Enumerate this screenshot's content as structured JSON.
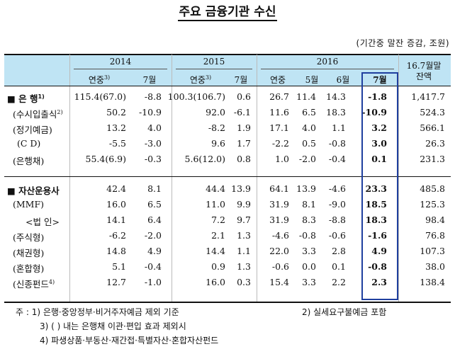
{
  "title": "주요 금융기관 수신",
  "unit": "(기간중 말잔 증감, 조원)",
  "header": {
    "years": [
      "2014",
      "2015",
      "2016"
    ],
    "sub_2014": [
      "연중",
      "7월"
    ],
    "sub_2015": [
      "연중",
      "7월"
    ],
    "sub_2016": [
      "연중",
      "5월",
      "6월",
      "7월"
    ],
    "sup3": "3)",
    "last_line1": "16.7월말",
    "last_line2": "잔액"
  },
  "rows": [
    {
      "label": "■ 은   행",
      "sup": "1)",
      "bold": true,
      "v": [
        "115.4(67.0)",
        "-8.8",
        "100.3(106.7)",
        "0.6",
        "26.7",
        "11.4",
        "14.3",
        "-1.8",
        "1,417.7"
      ]
    },
    {
      "label": "(수시입출식",
      "sup": "2)",
      "bold": false,
      "v": [
        "50.2",
        "-10.9",
        "92.0",
        "-6.1",
        "11.6",
        "6.5",
        "18.3",
        "-10.9",
        "524.3"
      ]
    },
    {
      "label": "(정기예금)",
      "sup": "",
      "bold": false,
      "v": [
        "13.2",
        "4.0",
        "-8.2",
        "1.9",
        "17.1",
        "4.0",
        "1.1",
        "3.2",
        "566.1"
      ]
    },
    {
      "label": "(C  D)",
      "sup": "",
      "bold": false,
      "v": [
        "-5.5",
        "-3.0",
        "9.6",
        "1.7",
        "-2.2",
        "0.5",
        "-0.8",
        "3.0",
        "26.3"
      ]
    },
    {
      "label": "(은행채)",
      "sup": "",
      "bold": false,
      "v": [
        "55.4(6.9)",
        "-0.3",
        "5.6(12.0)",
        "0.8",
        "1.0",
        "-2.0",
        "-0.4",
        "0.1",
        "231.3"
      ]
    },
    {
      "label": "■ 자산운용사",
      "sup": "",
      "bold": true,
      "v": [
        "42.4",
        "8.1",
        "44.4",
        "13.9",
        "64.1",
        "13.9",
        "-4.6",
        "23.3",
        "485.8"
      ]
    },
    {
      "label": "(MMF)",
      "sup": "",
      "bold": false,
      "v": [
        "16.0",
        "6.5",
        "11.0",
        "9.9",
        "31.9",
        "8.1",
        "-9.0",
        "18.5",
        "125.3"
      ]
    },
    {
      "label": "<법 인>",
      "sup": "",
      "bold": false,
      "v": [
        "14.1",
        "6.4",
        "7.2",
        "9.7",
        "31.9",
        "8.3",
        "-8.8",
        "18.3",
        "98.4"
      ]
    },
    {
      "label": "(주식형)",
      "sup": "",
      "bold": false,
      "v": [
        "-6.2",
        "-2.0",
        "2.1",
        "1.3",
        "-4.6",
        "-0.8",
        "-0.6",
        "-1.6",
        "76.8"
      ]
    },
    {
      "label": "(채권형)",
      "sup": "",
      "bold": false,
      "v": [
        "14.8",
        "4.9",
        "14.4",
        "1.1",
        "22.0",
        "3.3",
        "2.8",
        "4.9",
        "107.3"
      ]
    },
    {
      "label": "(혼합형)",
      "sup": "",
      "bold": false,
      "v": [
        "5.1",
        "-0.4",
        "0.9",
        "1.3",
        "-0.6",
        "0.0",
        "0.1",
        "-0.8",
        "38.0"
      ]
    },
    {
      "label": "(신종펀드",
      "sup": "4)",
      "bold": false,
      "v": [
        "12.7",
        "-1.0",
        "16.0",
        "0.3",
        "15.4",
        "3.3",
        "2.2",
        "2.3",
        "138.4"
      ]
    }
  ],
  "notes": {
    "n1": "주 : 1) 은행·중앙정부·비거주자예금 제외 기준",
    "n2": "2) 실세요구불예금 포함",
    "n3": "3) (  ) 내는 은행채 이관·편입 효과 제외시",
    "n4": "4) 파생상품·부동산·재간접·특별자산·혼합자산펀드"
  }
}
